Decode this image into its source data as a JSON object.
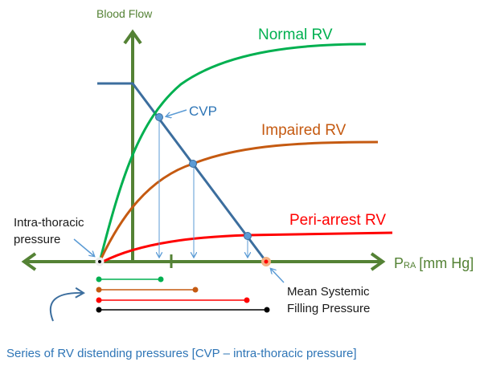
{
  "axes": {
    "y_label": "Blood Flow",
    "x_label_main": "P",
    "x_label_sub": "RA",
    "x_label_unit": "[mm Hg]"
  },
  "curves": {
    "normal": {
      "label": "Normal RV",
      "color": "#00b050"
    },
    "impaired": {
      "label": "Impaired RV",
      "color": "#c55a11"
    },
    "peri_arrest": {
      "label": "Peri-arrest RV",
      "color": "#ff0000"
    },
    "venous_return": {
      "color": "#3c6e9e"
    }
  },
  "annotations": {
    "cvp": "CVP",
    "intra_thoracic_line1": "Intra-thoracic",
    "intra_thoracic_line2": "pressure",
    "msfp_line1": "Mean Systemic",
    "msfp_line2": "Filling Pressure",
    "caption": "Series of RV distending pressures [CVP – intra-thoracic pressure]"
  },
  "colors": {
    "axis": "#548235",
    "arrow": "#5b9bd5",
    "text": "#1a1a1a",
    "caption": "#2e75b6"
  }
}
